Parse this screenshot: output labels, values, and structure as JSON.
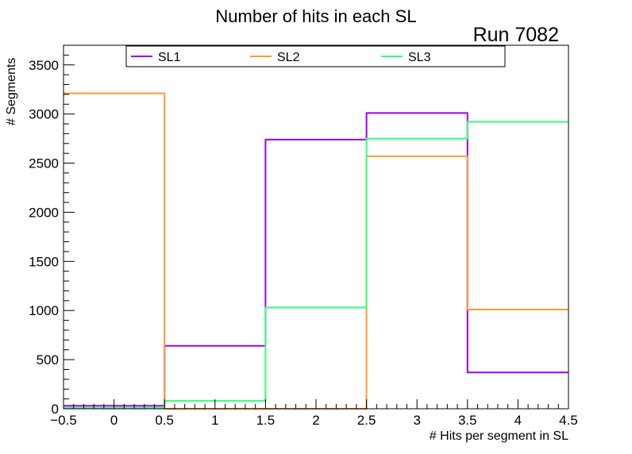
{
  "chart_data": {
    "type": "step",
    "title": "Number of hits in each SL",
    "annotation": "Run 7082",
    "xlabel": "# Hits per segment in SL",
    "ylabel": "# Segments",
    "xlim": [
      -0.5,
      4.5
    ],
    "ylim": [
      0,
      3700
    ],
    "bin_edges": [
      -0.5,
      0.5,
      1.5,
      2.5,
      3.5,
      4.5
    ],
    "x_ticks": [
      -0.5,
      0,
      0.5,
      1,
      1.5,
      2,
      2.5,
      3,
      3.5,
      4,
      4.5
    ],
    "x_tick_labels": [
      "−0.5",
      "0",
      "0.5",
      "1",
      "1.5",
      "2",
      "2.5",
      "3",
      "3.5",
      "4",
      "4.5"
    ],
    "y_ticks": [
      0,
      500,
      1000,
      1500,
      2000,
      2500,
      3000,
      3500
    ],
    "y_tick_labels": [
      "0",
      "500",
      "1000",
      "1500",
      "2000",
      "2500",
      "3000",
      "3500"
    ],
    "legend_position": "top",
    "series": [
      {
        "name": "SL1",
        "color": "#9900ff",
        "values": [
          30,
          640,
          2740,
          3010,
          370
        ]
      },
      {
        "name": "SL2",
        "color": "#ff9933",
        "values": [
          3210,
          0,
          0,
          2570,
          1010
        ]
      },
      {
        "name": "SL3",
        "color": "#33ff77",
        "values": [
          10,
          80,
          1030,
          2750,
          2920
        ]
      }
    ]
  }
}
